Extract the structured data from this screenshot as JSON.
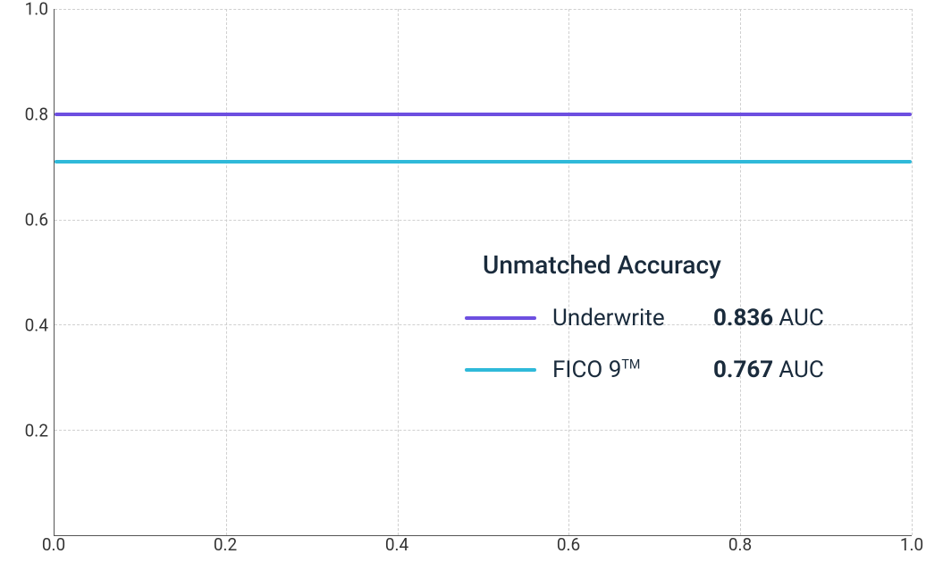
{
  "chart": {
    "type": "line",
    "xlim": [
      0.0,
      1.0
    ],
    "ylim": [
      0.0,
      1.0
    ],
    "xticks": [
      0.0,
      0.2,
      0.4,
      0.6,
      0.8,
      1.0
    ],
    "yticks": [
      0.2,
      0.4,
      0.6,
      0.8,
      1.0
    ],
    "xtick_labels": [
      "0.0",
      "0.2",
      "0.4",
      "0.6",
      "0.8",
      "1.0"
    ],
    "ytick_labels": [
      "0.2",
      "0.4",
      "0.6",
      "0.8",
      "1.0"
    ],
    "grid_color": "#d0d0d0",
    "axis_color": "#555555",
    "background_color": "#ffffff",
    "tick_fontsize": 19,
    "series": [
      {
        "name": "Underwrite",
        "y": 0.8,
        "color": "#6d4fe0",
        "line_width": 4
      },
      {
        "name": "FICO 9™",
        "y": 0.71,
        "color": "#2fb9d9",
        "line_width": 4
      }
    ]
  },
  "legend": {
    "title": "Unmatched Accuracy",
    "title_fontsize": 28,
    "title_color": "#1a2b3c",
    "label_fontsize": 26,
    "value_fontsize": 26,
    "text_color": "#1a2b3c",
    "items": [
      {
        "label": "Underwrite",
        "value": "0.836",
        "suffix": "AUC",
        "color": "#6d4fe0"
      },
      {
        "label": "FICO 9™",
        "value": "0.767",
        "suffix": "AUC",
        "color": "#2fb9d9"
      }
    ]
  }
}
